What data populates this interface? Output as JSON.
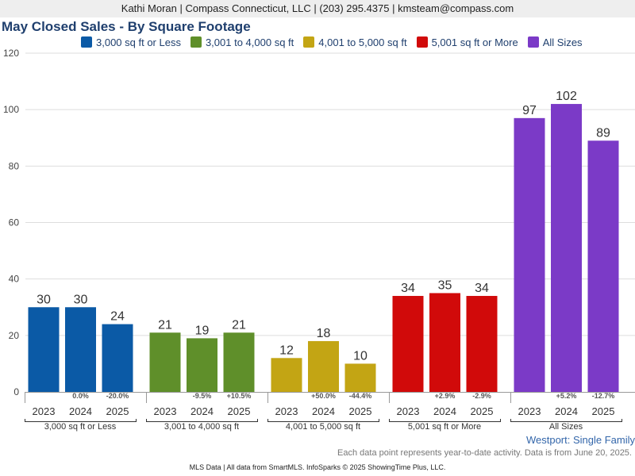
{
  "header": {
    "agent_line": "Kathi Moran | Compass Connecticut, LLC | (203) 295.4375 | kmsteam@compass.com"
  },
  "chart_data": {
    "type": "bar",
    "title": "May Closed Sales - By Square Footage",
    "years": [
      "2023",
      "2024",
      "2025"
    ],
    "yticks": [
      0,
      20,
      40,
      60,
      80,
      100,
      120
    ],
    "ylim": [
      0,
      120
    ],
    "grid": true,
    "legend_position": "top",
    "groups": [
      {
        "name": "3,000 sq ft or Less",
        "color": "#0b5aa6",
        "values": [
          30,
          30,
          24
        ],
        "changes": [
          "",
          "0.0%",
          "-20.0%"
        ]
      },
      {
        "name": "3,001 to 4,000 sq ft",
        "color": "#5f8f2a",
        "values": [
          21,
          19,
          21
        ],
        "changes": [
          "",
          "-9.5%",
          "+10.5%"
        ]
      },
      {
        "name": "4,001 to 5,000 sq ft",
        "color": "#c3a514",
        "values": [
          12,
          18,
          10
        ],
        "changes": [
          "",
          "+50.0%",
          "-44.4%"
        ]
      },
      {
        "name": "5,001 sq ft or More",
        "color": "#d10a0a",
        "values": [
          34,
          35,
          34
        ],
        "changes": [
          "",
          "+2.9%",
          "-2.9%"
        ]
      },
      {
        "name": "All Sizes",
        "color": "#7b3ac7",
        "values": [
          97,
          102,
          89
        ],
        "changes": [
          "",
          "+5.2%",
          "-12.7%"
        ]
      }
    ]
  },
  "footer": {
    "region": "Westport: Single Family",
    "note": "Each data point represents year-to-date activity. Data is from June 20, 2025.",
    "source": "MLS Data | All data from SmartMLS. InfoSparks © 2025 ShowingTime Plus, LLC."
  }
}
